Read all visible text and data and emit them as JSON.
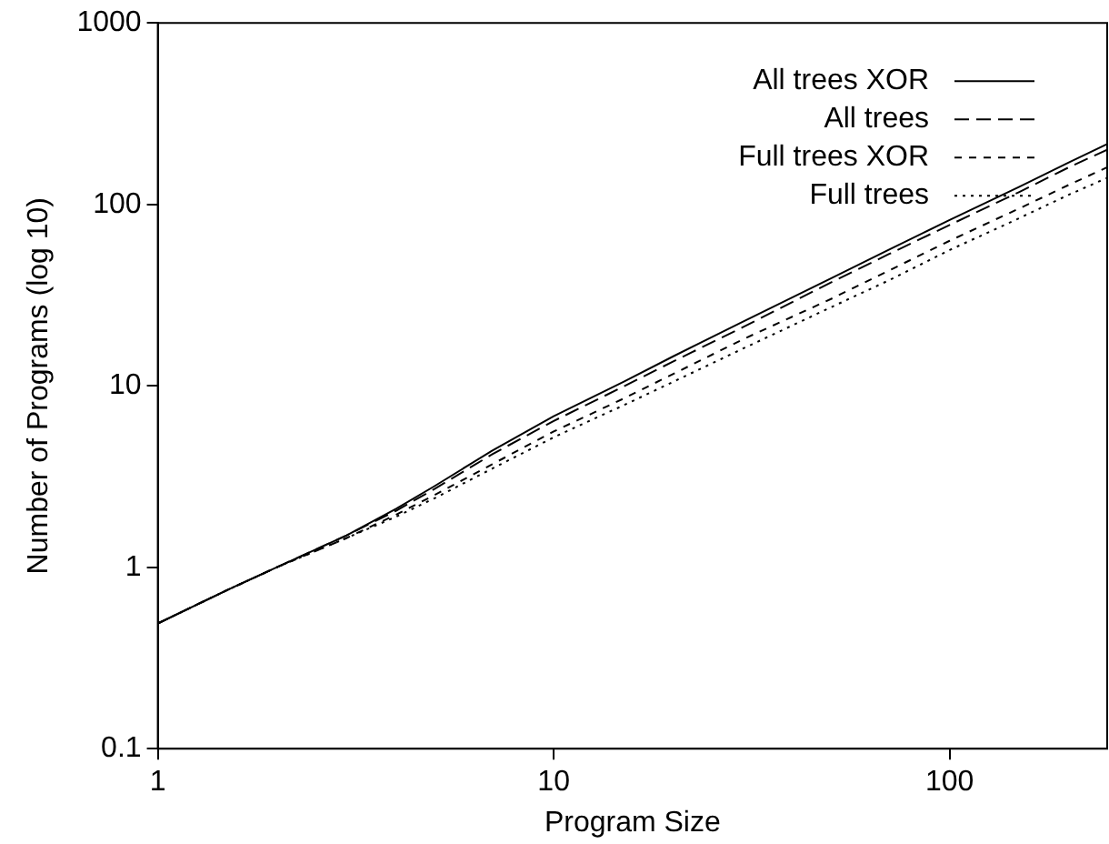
{
  "chart_data": {
    "type": "line",
    "xlabel": "Program Size",
    "ylabel": "Number of Programs (log 10)",
    "log": "xy",
    "xlim": [
      1,
      250
    ],
    "ylim": [
      0.1,
      1000
    ],
    "xticks": [
      1,
      10,
      100
    ],
    "yticks": [
      0.1,
      1,
      10,
      100,
      1000
    ],
    "grid": false,
    "legend": "top right",
    "marker": "none",
    "x": [
      1,
      1.5,
      2,
      3,
      4,
      5,
      7,
      10,
      15,
      20,
      30,
      50,
      70,
      100,
      150,
      200,
      250
    ],
    "series": [
      {
        "name": "All trees XOR",
        "color": "#000000",
        "line_style": "solid",
        "values": [
          0.49,
          0.75,
          1.0,
          1.5,
          2.1,
          2.8,
          4.4,
          6.8,
          10.5,
          14.5,
          22.5,
          39,
          56,
          82,
          125,
          170,
          215
        ]
      },
      {
        "name": "All trees",
        "color": "#000000",
        "line_style": "dashed",
        "values": [
          0.49,
          0.75,
          1.0,
          1.5,
          2.05,
          2.7,
          4.2,
          6.4,
          9.9,
          13.6,
          21,
          37,
          53,
          77,
          117,
          160,
          200
        ]
      },
      {
        "name": "Full trees XOR",
        "color": "#000000",
        "line_style": "dashed",
        "values": [
          0.49,
          0.75,
          1.0,
          1.45,
          1.95,
          2.5,
          3.7,
          5.6,
          8.5,
          11.6,
          18,
          30,
          43,
          63,
          95,
          128,
          160
        ]
      },
      {
        "name": "Full trees",
        "color": "#000000",
        "line_style": "dotted",
        "values": [
          0.49,
          0.75,
          1.0,
          1.45,
          1.9,
          2.4,
          3.5,
          5.2,
          7.8,
          10.5,
          16,
          27,
          38,
          56,
          84,
          113,
          140
        ]
      }
    ]
  }
}
